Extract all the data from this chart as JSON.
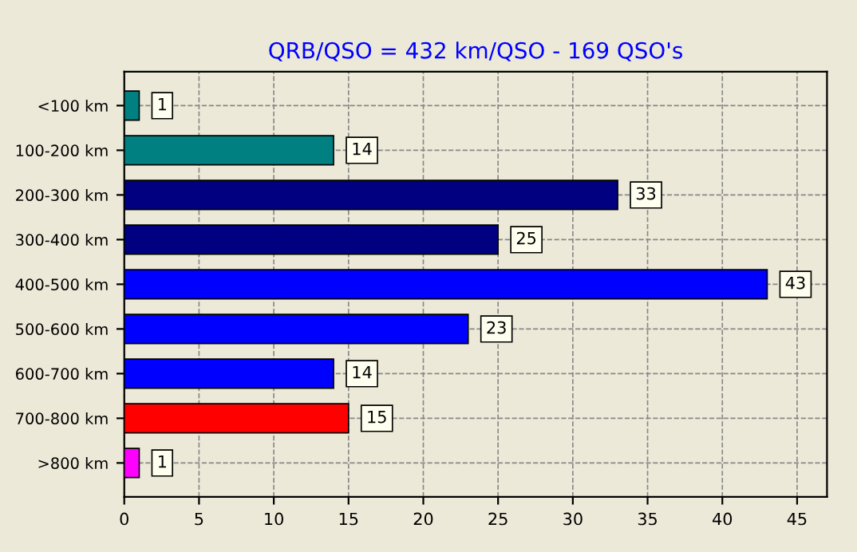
{
  "chart_data": {
    "type": "bar",
    "orientation": "horizontal",
    "title": "QRB/QSO = 432 km/QSO - 169 QSO's",
    "categories": [
      "<100 km",
      "100-200 km",
      "200-300 km",
      "300-400 km",
      "400-500 km",
      "500-600 km",
      "600-700 km",
      "700-800 km",
      ">800 km"
    ],
    "values": [
      1,
      14,
      33,
      25,
      43,
      23,
      14,
      15,
      1
    ],
    "colors": [
      "#008080",
      "#008080",
      "#000080",
      "#000080",
      "#0000ff",
      "#0000ff",
      "#0000ff",
      "#ff0000",
      "#ff00ff"
    ],
    "xlim": [
      0,
      47
    ],
    "xticks": [
      0,
      5,
      10,
      15,
      20,
      25,
      30,
      35,
      40,
      45
    ],
    "grid": true,
    "data_labels": true
  }
}
